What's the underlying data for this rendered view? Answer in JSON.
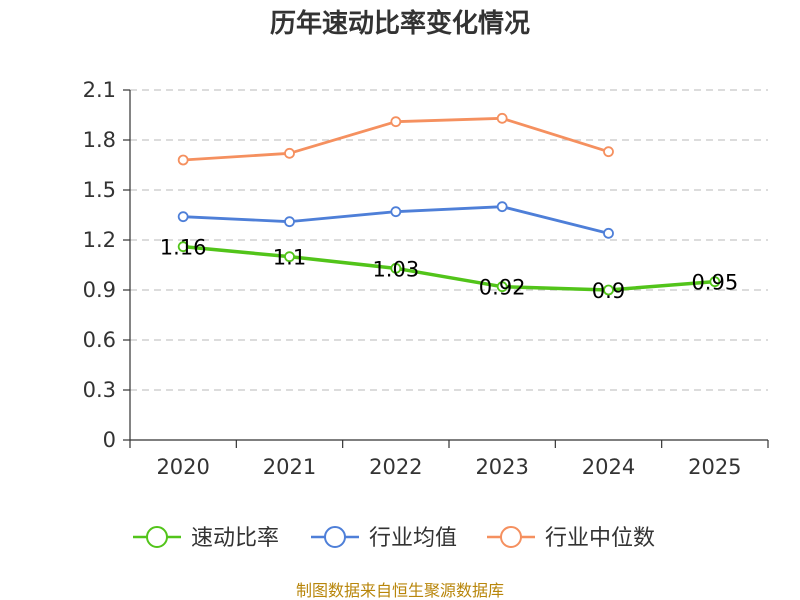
{
  "chart_data": {
    "type": "line",
    "title": "历年速动比率变化情况",
    "categories": [
      "2020",
      "2021",
      "2022",
      "2023",
      "2024",
      "2025"
    ],
    "ylim": [
      0,
      2.1
    ],
    "yticks": [
      "0",
      "0.3",
      "0.6",
      "0.9",
      "1.2",
      "1.5",
      "1.8",
      "2.1"
    ],
    "grid": true,
    "legend_position": "bottom",
    "series": [
      {
        "name": "速动比率",
        "color": "#52c41a",
        "values": [
          1.16,
          1.1,
          1.03,
          0.92,
          0.9,
          0.95
        ],
        "labels": [
          "1.16",
          "1.1",
          "1.03",
          "0.92",
          "0.9",
          "0.95"
        ]
      },
      {
        "name": "行业均值",
        "color": "#4e7fd8",
        "values": [
          1.34,
          1.31,
          1.37,
          1.4,
          1.24,
          null
        ]
      },
      {
        "name": "行业中位数",
        "color": "#f5905f",
        "values": [
          1.68,
          1.72,
          1.91,
          1.93,
          1.73,
          null
        ]
      }
    ],
    "source": "制图数据来自恒生聚源数据库"
  }
}
